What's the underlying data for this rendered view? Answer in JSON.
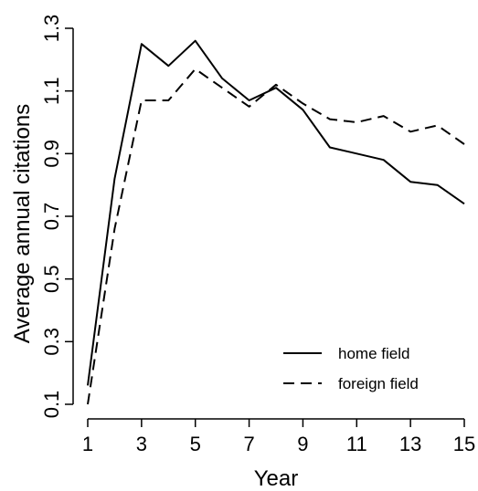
{
  "chart_data": {
    "type": "line",
    "xlabel": "Year",
    "ylabel": "Average annual citations",
    "xlim": [
      1,
      15
    ],
    "ylim": [
      0.1,
      1.3
    ],
    "x_ticks": [
      "1",
      "3",
      "5",
      "7",
      "9",
      "11",
      "13",
      "15"
    ],
    "y_ticks": [
      "0.1",
      "0.3",
      "0.5",
      "0.7",
      "0.9",
      "1.1",
      "1.3"
    ],
    "x": [
      1,
      2,
      3,
      4,
      5,
      6,
      7,
      8,
      9,
      10,
      11,
      12,
      13,
      14,
      15
    ],
    "series": [
      {
        "name": "home field",
        "line_style": "solid",
        "color": "#000000",
        "values": [
          0.16,
          0.82,
          1.25,
          1.18,
          1.26,
          1.14,
          1.07,
          1.11,
          1.04,
          0.92,
          0.9,
          0.88,
          0.81,
          0.8,
          0.74
        ]
      },
      {
        "name": "foreign field",
        "line_style": "dashed",
        "color": "#000000",
        "values": [
          0.1,
          0.66,
          1.07,
          1.07,
          1.17,
          1.11,
          1.05,
          1.12,
          1.06,
          1.01,
          1.0,
          1.02,
          0.97,
          0.99,
          0.93
        ]
      }
    ],
    "grid": false,
    "legend_position": "bottom-right"
  }
}
